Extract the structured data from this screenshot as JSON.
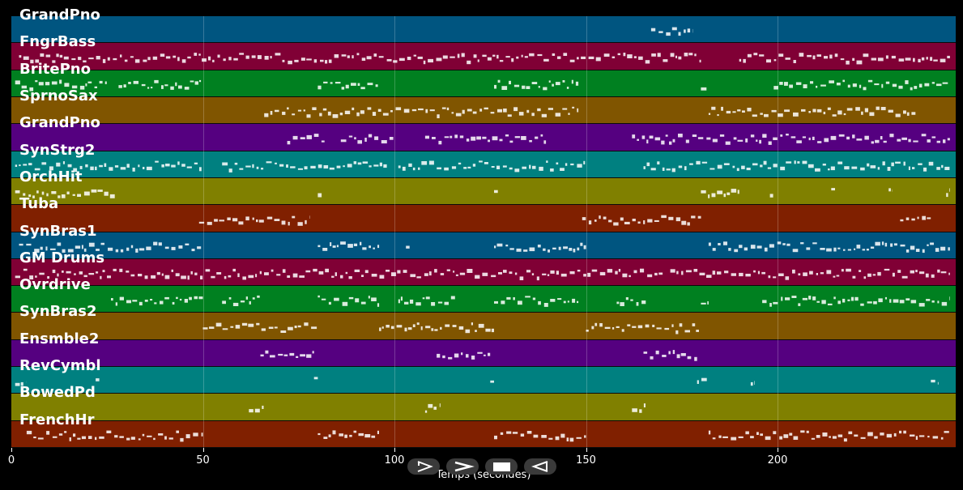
{
  "tracks": [
    {
      "name": "GrandPno",
      "color": "#005580"
    },
    {
      "name": "FngrBass",
      "color": "#800035"
    },
    {
      "name": "BritePno",
      "color": "#008020"
    },
    {
      "name": "SprnoSax",
      "color": "#805500"
    },
    {
      "name": "GrandPno",
      "color": "#550080"
    },
    {
      "name": "SynStrg2",
      "color": "#008080"
    },
    {
      "name": "OrchHit",
      "color": "#808000"
    },
    {
      "name": "Tuba",
      "color": "#802000"
    },
    {
      "name": "SynBras1",
      "color": "#005580"
    },
    {
      "name": "GM Drums",
      "color": "#800035"
    },
    {
      "name": "Ovrdrive",
      "color": "#008020"
    },
    {
      "name": "SynBras2",
      "color": "#805500"
    },
    {
      "name": "Ensmble2",
      "color": "#550080"
    },
    {
      "name": "RevCymbl",
      "color": "#008080"
    },
    {
      "name": "BowedPd",
      "color": "#808000"
    },
    {
      "name": "FrenchHr",
      "color": "#802000"
    }
  ],
  "axis": {
    "xlabel": "Temps (secondes)",
    "xmin": 0,
    "xmax": 246.5,
    "ticks": [
      {
        "value": 0,
        "label": "0"
      },
      {
        "value": 50,
        "label": "50"
      },
      {
        "value": 100,
        "label": "100"
      },
      {
        "value": 150,
        "label": "150"
      },
      {
        "value": 200,
        "label": "200"
      }
    ]
  },
  "note_segments": [
    [
      [
        167,
        178
      ]
    ],
    [
      [
        2,
        180
      ],
      [
        190,
        245
      ]
    ],
    [
      [
        1,
        25
      ],
      [
        28,
        50
      ],
      [
        80,
        96
      ],
      [
        126,
        148
      ],
      [
        180,
        182
      ],
      [
        199,
        245
      ]
    ],
    [
      [
        66,
        148
      ],
      [
        182,
        236
      ]
    ],
    [
      [
        72,
        82
      ],
      [
        86,
        100
      ],
      [
        108,
        140
      ],
      [
        162,
        245
      ]
    ],
    [
      [
        1,
        50
      ],
      [
        55,
        98
      ],
      [
        101,
        150
      ],
      [
        165,
        245
      ]
    ],
    [
      [
        1,
        27
      ],
      [
        80,
        81
      ],
      [
        126,
        127
      ],
      [
        180,
        190
      ],
      [
        198,
        199
      ],
      [
        214,
        215
      ],
      [
        229,
        230
      ],
      [
        244,
        245
      ]
    ],
    [
      [
        49,
        78
      ],
      [
        149,
        180
      ],
      [
        232,
        240
      ]
    ],
    [
      [
        2,
        50
      ],
      [
        80,
        96
      ],
      [
        103,
        104
      ],
      [
        126,
        150
      ],
      [
        182,
        245
      ]
    ],
    [
      [
        1,
        170
      ],
      [
        172,
        245
      ]
    ],
    [
      [
        26,
        50
      ],
      [
        55,
        65
      ],
      [
        80,
        96
      ],
      [
        101,
        116
      ],
      [
        126,
        148
      ],
      [
        158,
        166
      ],
      [
        180,
        182
      ],
      [
        196,
        245
      ]
    ],
    [
      [
        50,
        80
      ],
      [
        96,
        126
      ],
      [
        150,
        180
      ]
    ],
    [
      [
        65,
        79
      ],
      [
        111,
        125
      ],
      [
        165,
        179
      ]
    ],
    [
      [
        1,
        4
      ],
      [
        22,
        23
      ],
      [
        79,
        80
      ],
      [
        125,
        126
      ],
      [
        179,
        182
      ],
      [
        193,
        194
      ],
      [
        240,
        242
      ]
    ],
    [
      [
        62,
        66
      ],
      [
        108,
        112
      ],
      [
        162,
        166
      ]
    ],
    [
      [
        4,
        50
      ],
      [
        80,
        96
      ],
      [
        126,
        150
      ],
      [
        182,
        245
      ]
    ]
  ],
  "controls": [
    {
      "name": "play-forward-button",
      "icon": "play-outline-icon"
    },
    {
      "name": "fast-forward-button",
      "icon": "chevron-right-icon"
    },
    {
      "name": "stop-button",
      "icon": "stop-square-icon"
    },
    {
      "name": "rewind-button",
      "icon": "play-reverse-icon"
    }
  ]
}
